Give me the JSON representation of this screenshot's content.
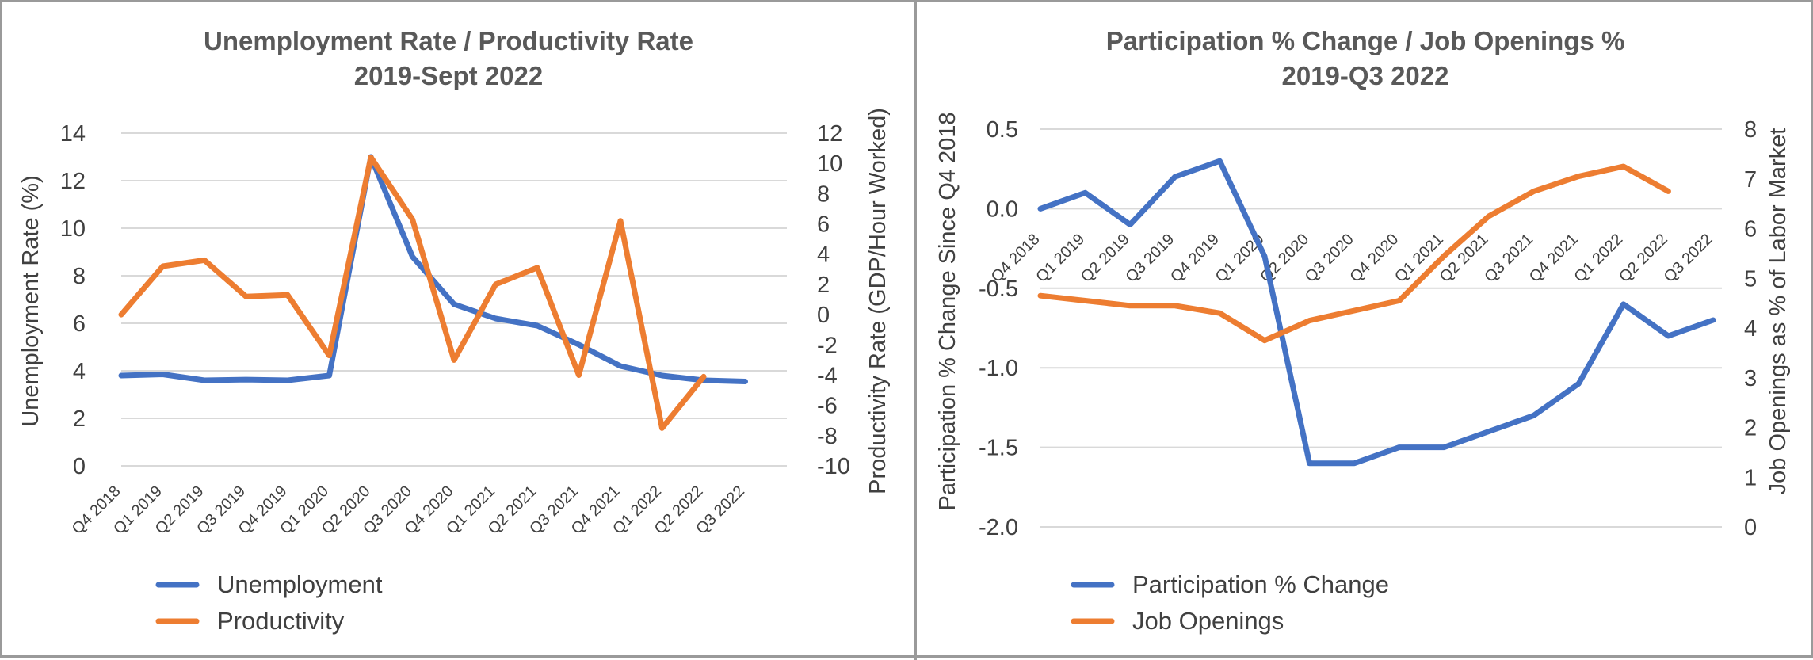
{
  "chart_data": [
    {
      "type": "line",
      "title": "Unemployment Rate / Productivity Rate",
      "subtitle": "2019-Sept 2022",
      "categories": [
        "Q4 2018",
        "Q1 2019",
        "Q2 2019",
        "Q3 2019",
        "Q4 2019",
        "Q1 2020",
        "Q2 2020",
        "Q3 2020",
        "Q4 2020",
        "Q1 2021",
        "Q2 2021",
        "Q3 2021",
        "Q4 2021",
        "Q1 2022",
        "Q2 2022",
        "Q3 2022"
      ],
      "ylabel": "Unemployment  Rate (%)",
      "y2label": "Productivity Rate (GDP/Hour Worked)",
      "ylim": [
        0,
        14
      ],
      "yticks": [
        "0",
        "2",
        "4",
        "6",
        "8",
        "10",
        "12",
        "14"
      ],
      "y2lim": [
        -10,
        12
      ],
      "y2ticks": [
        "-10",
        "-8",
        "-6",
        "-4",
        "-2",
        "0",
        "2",
        "4",
        "6",
        "8",
        "10",
        "12"
      ],
      "grid": true,
      "legend_position": "bottom-left",
      "series": [
        {
          "name": "Unemployment",
          "axis": "left",
          "color": "#4472c4",
          "values": [
            3.8,
            3.85,
            3.6,
            3.63,
            3.6,
            3.8,
            13.0,
            8.8,
            6.8,
            6.2,
            5.9,
            5.1,
            4.2,
            3.8,
            3.6,
            3.55
          ]
        },
        {
          "name": "Productivity",
          "axis": "right",
          "color": "#ed7d31",
          "values": [
            0.0,
            3.2,
            3.6,
            1.2,
            1.3,
            -2.7,
            10.4,
            6.3,
            -3.0,
            2.0,
            3.1,
            -4.0,
            6.2,
            -7.5,
            -4.1,
            null
          ]
        }
      ]
    },
    {
      "type": "line",
      "title": "Participation % Change / Job Openings %",
      "subtitle": "2019-Q3 2022",
      "categories": [
        "Q4 2018",
        "Q1 2019",
        "Q2 2019",
        "Q3 2019",
        "Q4 2019",
        "Q1 2020",
        "Q2 2020",
        "Q3 2020",
        "Q4 2020",
        "Q1 2021",
        "Q2 2021",
        "Q3 2021",
        "Q4 2021",
        "Q1 2022",
        "Q2 2022",
        "Q3 2022"
      ],
      "ylabel": "Participation % Change Since Q4 2018",
      "y2label": "Job Openings as % of Labor Market",
      "ylim": [
        -2.0,
        0.5
      ],
      "yticks": [
        "-2.0",
        "-1.5",
        "-1.0",
        "-0.5",
        "0.0",
        "0.5"
      ],
      "y2lim": [
        0,
        8
      ],
      "y2ticks": [
        "0",
        "1",
        "2",
        "3",
        "4",
        "5",
        "6",
        "7",
        "8"
      ],
      "grid": true,
      "legend_position": "bottom-left",
      "series": [
        {
          "name": "Participation % Change",
          "axis": "left",
          "color": "#4472c4",
          "values": [
            0.0,
            0.1,
            -0.1,
            0.2,
            0.3,
            -0.3,
            -1.6,
            -1.6,
            -1.5,
            -1.5,
            -1.4,
            -1.3,
            -1.1,
            -0.6,
            -0.8,
            -0.7
          ]
        },
        {
          "name": "Job Openings",
          "axis": "right",
          "color": "#ed7d31",
          "values": [
            4.65,
            4.55,
            4.45,
            4.45,
            4.3,
            3.75,
            4.15,
            4.35,
            4.55,
            5.45,
            6.25,
            6.75,
            7.05,
            7.25,
            6.75,
            null
          ]
        }
      ]
    }
  ]
}
